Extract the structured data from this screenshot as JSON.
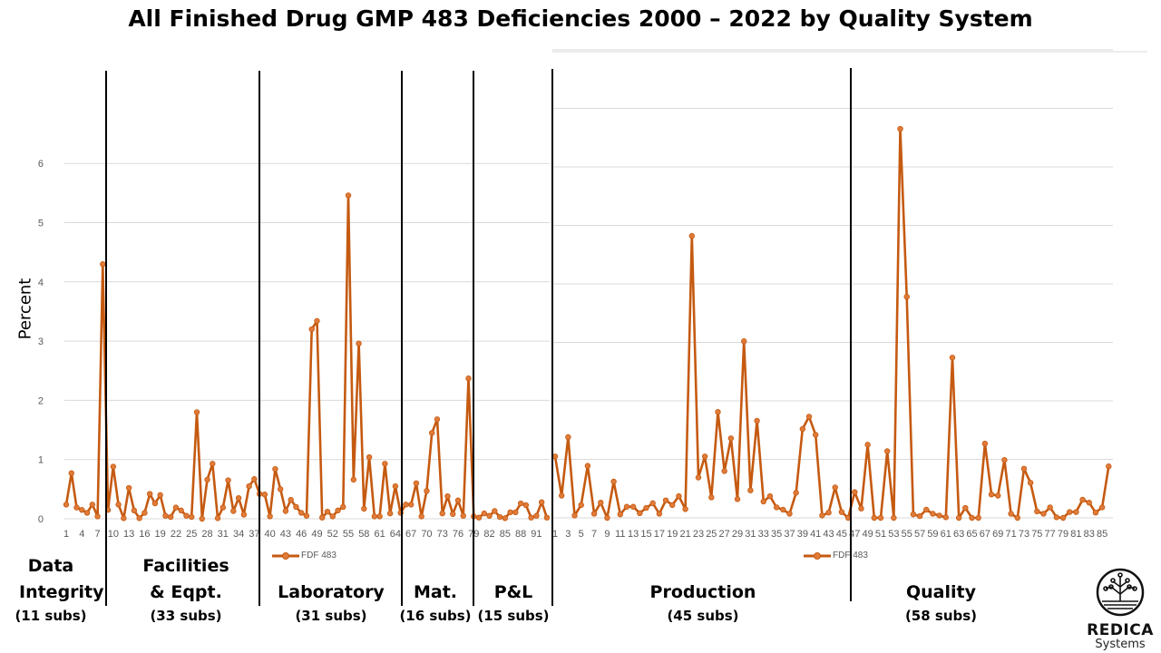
{
  "title": "All Finished Drug GMP 483 Deficiencies 2000 – 2022 by Quality System",
  "colors": {
    "series": "#C55A11",
    "marker": "#E07B39",
    "grid": "#D9D9D9",
    "divider": "#000000",
    "tick": "#595959"
  },
  "chart_data": [
    {
      "type": "line",
      "ylabel": "Percent",
      "ylim": [
        0,
        6
      ],
      "yticks": [
        "0",
        "1",
        "2",
        "3",
        "4",
        "5",
        "6"
      ],
      "grid": true,
      "legend": "bottom",
      "x_tick_step": 3,
      "series": [
        {
          "name": "FDF 483",
          "values": [
            0.24,
            0.77,
            0.19,
            0.15,
            0.1,
            0.24,
            0.04,
            4.3,
            0.15,
            0.88,
            0.24,
            0.01,
            0.52,
            0.14,
            0.01,
            0.1,
            0.42,
            0.26,
            0.4,
            0.05,
            0.03,
            0.19,
            0.14,
            0.05,
            0.03,
            1.8,
            0,
            0.66,
            0.93,
            0.01,
            0.19,
            0.65,
            0.13,
            0.35,
            0.07,
            0.55,
            0.67,
            0.42,
            0.41,
            0.04,
            0.84,
            0.5,
            0.13,
            0.32,
            0.2,
            0.1,
            0.05,
            3.2,
            3.34,
            0.02,
            0.12,
            0.04,
            0.14,
            0.2,
            5.46,
            0.66,
            2.96,
            0.17,
            1.04,
            0.04,
            0.04,
            0.93,
            0.09,
            0.55,
            0.1,
            0.24,
            0.24,
            0.6,
            0.04,
            0.47,
            1.45,
            1.68,
            0.09,
            0.38,
            0.08,
            0.31,
            0.05,
            2.37,
            0.04,
            0.02,
            0.09,
            0.05,
            0.13,
            0.03,
            0.01,
            0.11,
            0.11,
            0.26,
            0.23,
            0.02,
            0.05,
            0.28,
            0.02
          ]
        }
      ]
    },
    {
      "type": "line",
      "ylim": [
        0,
        8
      ],
      "grid": true,
      "legend": "bottom",
      "x_tick_step": 2,
      "series": [
        {
          "name": "FDF 483",
          "values": [
            1.05,
            0.38,
            1.38,
            0.04,
            0.22,
            0.89,
            0.07,
            0.26,
            0,
            0.62,
            0.06,
            0.19,
            0.19,
            0.08,
            0.17,
            0.25,
            0.07,
            0.3,
            0.22,
            0.37,
            0.15,
            4.82,
            0.69,
            1.05,
            0.35,
            1.81,
            0.8,
            1.36,
            0.32,
            3.02,
            0.47,
            1.66,
            0.28,
            0.37,
            0.18,
            0.14,
            0.07,
            0.43,
            1.52,
            1.73,
            1.42,
            0.04,
            0.09,
            0.52,
            0.1,
            0,
            0.44,
            0.16,
            1.25,
            0,
            0,
            1.14,
            0,
            6.65,
            3.78,
            0.06,
            0.03,
            0.14,
            0.07,
            0.04,
            0.01,
            2.74,
            0,
            0.17,
            0,
            0,
            1.27,
            0.4,
            0.38,
            0.99,
            0.07,
            0,
            0.84,
            0.6,
            0.11,
            0.07,
            0.18,
            0.01,
            0,
            0.1,
            0.1,
            0.31,
            0.26,
            0.09,
            0.18,
            0.88
          ]
        }
      ]
    }
  ],
  "groups": [
    {
      "name": "Data Integrity",
      "subs": "(11 subs)"
    },
    {
      "name": "Facilities & Eqpt.",
      "subs": "(33 subs)"
    },
    {
      "name": "Laboratory",
      "subs": "(31 subs)"
    },
    {
      "name": "Mat.",
      "subs": "(16 subs)"
    },
    {
      "name": "P&L",
      "subs": "(15 subs)"
    },
    {
      "name": "Production",
      "subs": "(45 subs)"
    },
    {
      "name": "Quality",
      "subs": "(58 subs)"
    }
  ],
  "logo": {
    "brand": "REDICA",
    "sub": "Systems",
    "icon": "tree-circle-icon"
  }
}
